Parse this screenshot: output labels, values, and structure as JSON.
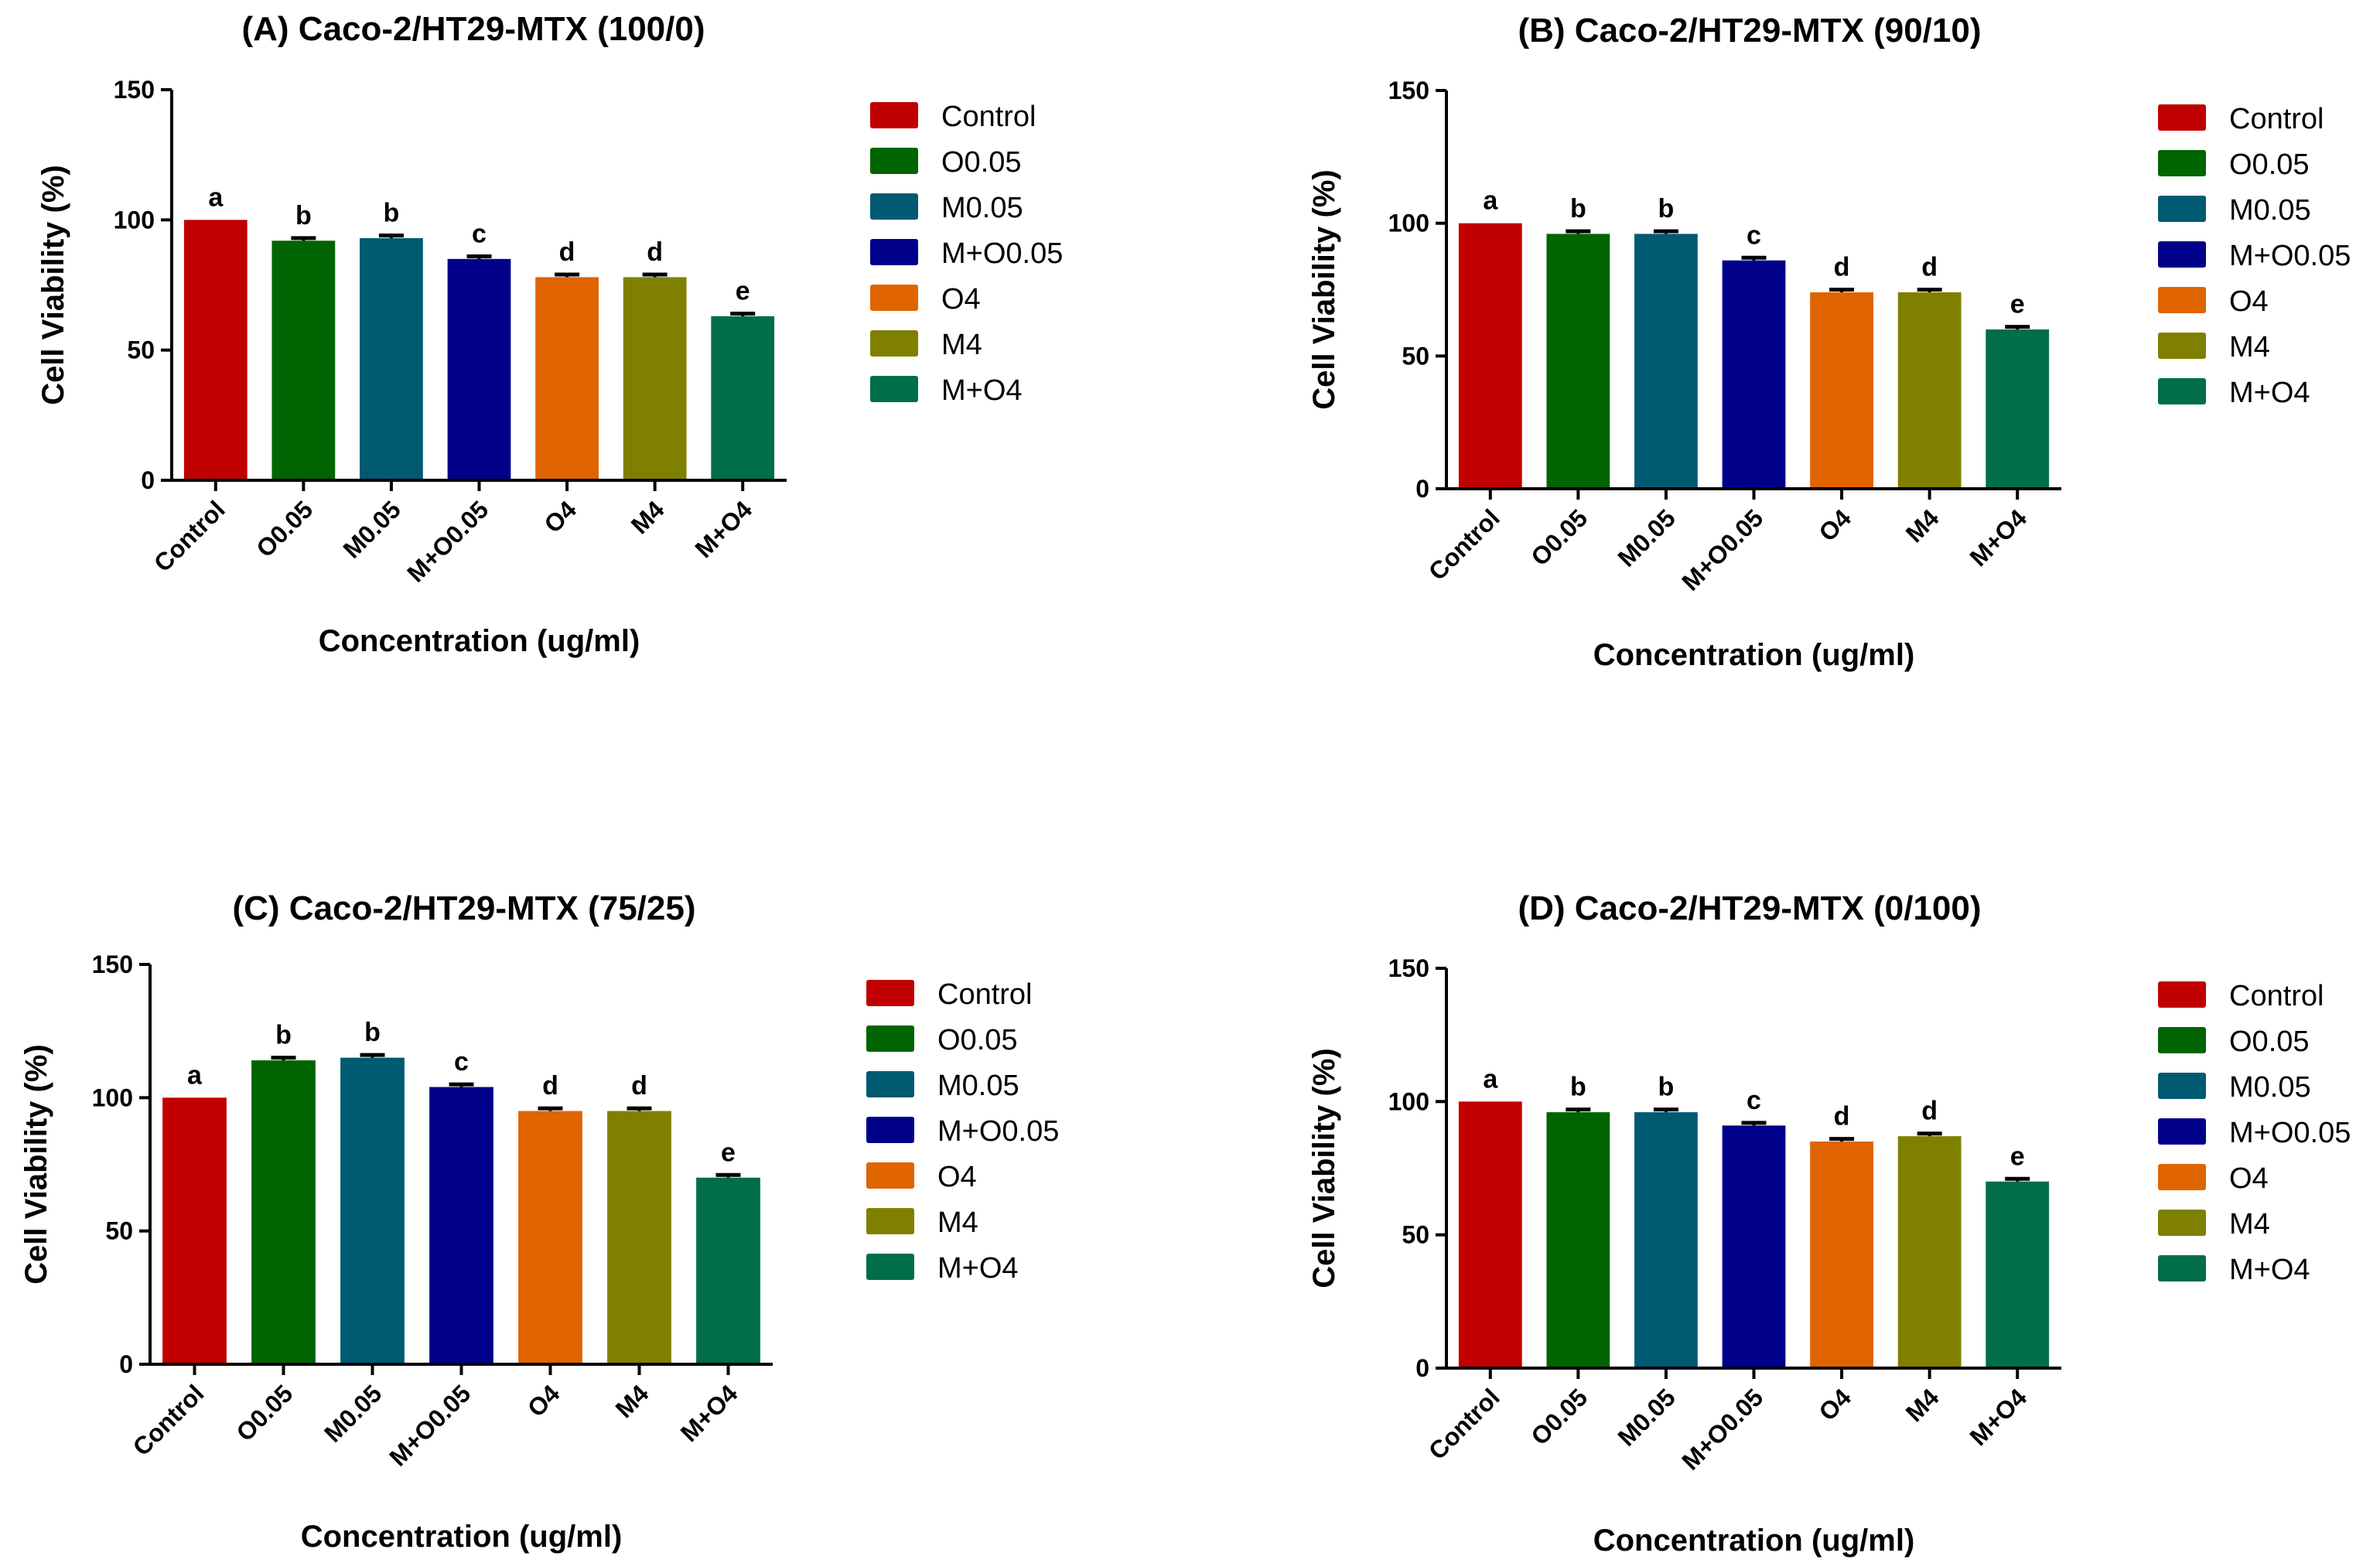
{
  "chart_data": [
    {
      "id": "A",
      "type": "bar",
      "title": "(A) Caco-2/HT29-MTX (100/0)",
      "xlabel": "Concentration (ug/ml)",
      "ylabel": "Cell Viability (%)",
      "ylim": [
        0,
        150
      ],
      "yticks": [
        0,
        50,
        100,
        150
      ],
      "categories": [
        "Control",
        "O0.05",
        "M0.05",
        "M+O0.05",
        "O4",
        "M4",
        "M+O4"
      ],
      "values": [
        100,
        92,
        93,
        85,
        78,
        78,
        63
      ],
      "errors": [
        0,
        1,
        1,
        1,
        1,
        1,
        1
      ],
      "labels": [
        "a",
        "b",
        "b",
        "c",
        "d",
        "d",
        "e"
      ]
    },
    {
      "id": "B",
      "type": "bar",
      "title": "(B) Caco-2/HT29-MTX (90/10)",
      "xlabel": "Concentration (ug/ml)",
      "ylabel": "Cell Viability (%)",
      "ylim": [
        0,
        150
      ],
      "yticks": [
        0,
        50,
        100,
        150
      ],
      "categories": [
        "Control",
        "O0.05",
        "M0.05",
        "M+O0.05",
        "O4",
        "M4",
        "M+O4"
      ],
      "values": [
        100,
        96,
        96,
        86,
        74,
        74,
        60
      ],
      "errors": [
        0,
        1,
        1,
        1,
        1,
        1,
        1
      ],
      "labels": [
        "a",
        "b",
        "b",
        "c",
        "d",
        "d",
        "e"
      ]
    },
    {
      "id": "C",
      "type": "bar",
      "title": "(C) Caco-2/HT29-MTX (75/25)",
      "xlabel": "Concentration (ug/ml)",
      "ylabel": "Cell Viability (%)",
      "ylim": [
        0,
        150
      ],
      "yticks": [
        0,
        50,
        100,
        150
      ],
      "categories": [
        "Control",
        "O0.05",
        "M0.05",
        "M+O0.05",
        "O4",
        "M4",
        "M+O4"
      ],
      "values": [
        100,
        114,
        115,
        104,
        95,
        95,
        70
      ],
      "errors": [
        0,
        1,
        1,
        1,
        1,
        1,
        1
      ],
      "labels": [
        "a",
        "b",
        "b",
        "c",
        "d",
        "d",
        "e"
      ]
    },
    {
      "id": "D",
      "type": "bar",
      "title": "(D) Caco-2/HT29-MTX (0/100)",
      "xlabel": "Concentration (ug/ml)",
      "ylabel": "Cell Viability (%)",
      "ylim": [
        0,
        150
      ],
      "yticks": [
        0,
        50,
        100,
        150
      ],
      "categories": [
        "Control",
        "O0.05",
        "M0.05",
        "M+O0.05",
        "O4",
        "M4",
        "M+O4"
      ],
      "values": [
        100,
        96,
        96,
        91,
        85,
        87,
        70
      ],
      "errors": [
        0,
        1,
        1,
        1,
        1,
        1,
        1
      ],
      "labels": [
        "a",
        "b",
        "b",
        "c",
        "d",
        "d",
        "e"
      ]
    }
  ],
  "legend": [
    {
      "name": "Control",
      "color": "#C00000"
    },
    {
      "name": "O0.05",
      "color": "#006400"
    },
    {
      "name": "M0.05",
      "color": "#005A72"
    },
    {
      "name": "M+O0.05",
      "color": "#00008B"
    },
    {
      "name": "O4",
      "color": "#E06400"
    },
    {
      "name": "M4",
      "color": "#808000"
    },
    {
      "name": "M+O4",
      "color": "#006E46"
    }
  ]
}
